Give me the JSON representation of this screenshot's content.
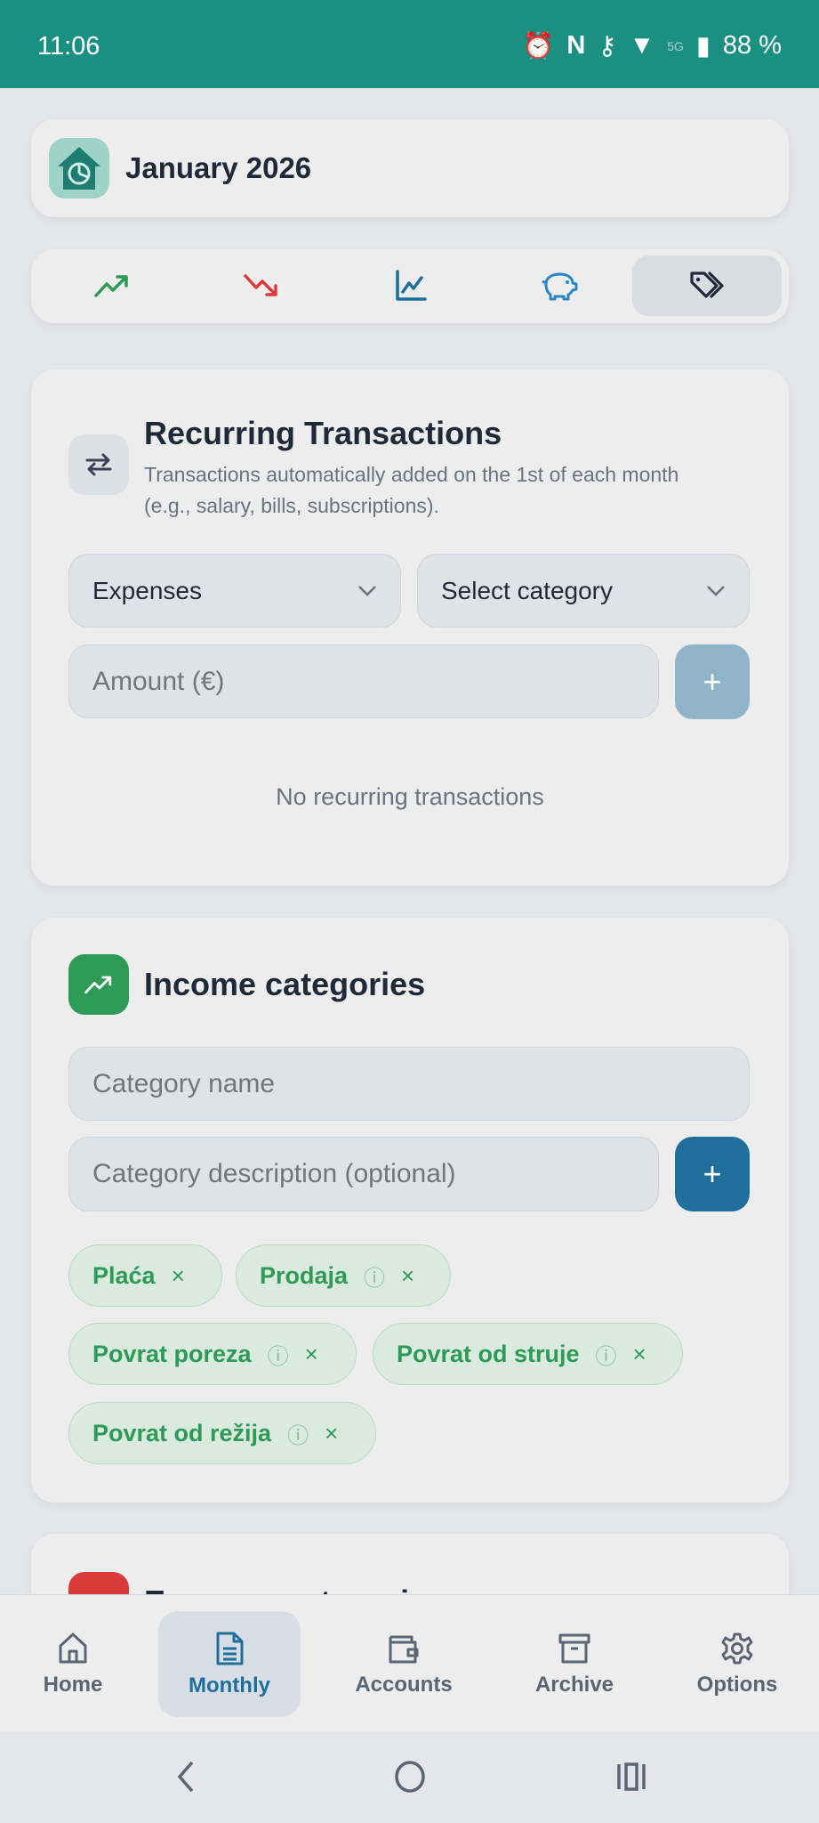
{
  "status_bar": {
    "time": "11:06",
    "battery": "88 %",
    "network": "5G"
  },
  "header": {
    "title": "January 2026",
    "logo": "house-pie-chart-logo"
  },
  "tabs": [
    {
      "icon": "trending-up-icon",
      "color": "#2e9a57"
    },
    {
      "icon": "trending-down-icon",
      "color": "#d93a3a"
    },
    {
      "icon": "line-chart-icon",
      "color": "#1f6e9c"
    },
    {
      "icon": "piggy-bank-icon",
      "color": "#2b86c5"
    },
    {
      "icon": "tags-icon",
      "color": "#1f2937",
      "active": true
    }
  ],
  "recurring": {
    "title": "Recurring Transactions",
    "subtitle_1": "Transactions automatically added on the 1st of each month",
    "subtitle_2": "(e.g., salary, bills, subscriptions).",
    "type_select": "Expenses",
    "category_select": "Select category",
    "amount_placeholder": "Amount (€)",
    "add_button": "+",
    "empty": "No recurring transactions"
  },
  "income": {
    "title": "Income categories",
    "name_placeholder": "Category name",
    "desc_placeholder": "Category description (optional)",
    "add_button": "+",
    "categories": [
      {
        "label": "Plaća",
        "has_info": false
      },
      {
        "label": "Prodaja",
        "has_info": true
      },
      {
        "label": "Povrat poreza",
        "has_info": true
      },
      {
        "label": "Povrat od struje",
        "has_info": true
      },
      {
        "label": "Povrat od režija",
        "has_info": true
      }
    ],
    "remove_glyph": "×"
  },
  "expense": {
    "title": "Expense categories"
  },
  "bottom_nav": [
    {
      "label": "Home",
      "icon": "home-icon"
    },
    {
      "label": "Monthly",
      "icon": "document-icon",
      "active": true
    },
    {
      "label": "Accounts",
      "icon": "wallet-icon"
    },
    {
      "label": "Archive",
      "icon": "archive-icon"
    },
    {
      "label": "Options",
      "icon": "gear-icon"
    }
  ],
  "colors": {
    "status_bar": "#1a8f82",
    "income": "#2e9a57",
    "expense": "#d93a3a",
    "primary": "#1f6e9c",
    "primary_disabled": "#8fb4c9"
  }
}
